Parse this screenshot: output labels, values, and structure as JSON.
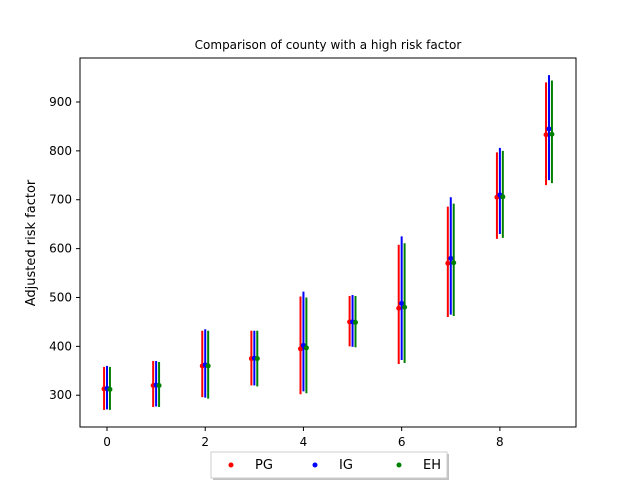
{
  "chart_data": {
    "type": "errorbar-scatter",
    "title": "Comparison of county with a high risk factor",
    "xlabel": "",
    "ylabel": "Adjusted risk factor",
    "xlim": [
      -0.55,
      9.55
    ],
    "ylim": [
      235,
      990
    ],
    "xticks": [
      0,
      2,
      4,
      6,
      8
    ],
    "yticks": [
      300,
      400,
      500,
      600,
      700,
      800,
      900
    ],
    "legend_position": "bottom-center",
    "series": [
      {
        "name": "PG",
        "color": "#ff0000",
        "offset": -0.06,
        "x": [
          0,
          1,
          2,
          3,
          4,
          5,
          6,
          7,
          8,
          9
        ],
        "y": [
          313,
          320,
          360,
          375,
          395,
          450,
          478,
          570,
          705,
          833
        ],
        "low": [
          270,
          276,
          296,
          320,
          302,
          400,
          364,
          460,
          620,
          730
        ],
        "high": [
          358,
          370,
          432,
          432,
          502,
          503,
          608,
          686,
          797,
          940
        ]
      },
      {
        "name": "IG",
        "color": "#0000ff",
        "offset": 0.0,
        "x": [
          0,
          1,
          2,
          3,
          4,
          5,
          6,
          7,
          8,
          9
        ],
        "y": [
          314,
          321,
          362,
          376,
          402,
          450,
          488,
          580,
          710,
          845
        ],
        "low": [
          271,
          277,
          295,
          320,
          308,
          399,
          372,
          465,
          630,
          740
        ],
        "high": [
          360,
          370,
          435,
          432,
          512,
          505,
          625,
          705,
          806,
          955
        ]
      },
      {
        "name": "EH",
        "color": "#008000",
        "offset": 0.06,
        "x": [
          0,
          1,
          2,
          3,
          4,
          5,
          6,
          7,
          8,
          9
        ],
        "y": [
          312,
          320,
          360,
          375,
          397,
          449,
          480,
          571,
          706,
          834
        ],
        "low": [
          270,
          276,
          293,
          318,
          304,
          398,
          366,
          462,
          622,
          734
        ],
        "high": [
          358,
          368,
          432,
          432,
          500,
          503,
          611,
          692,
          800,
          944
        ]
      }
    ]
  }
}
